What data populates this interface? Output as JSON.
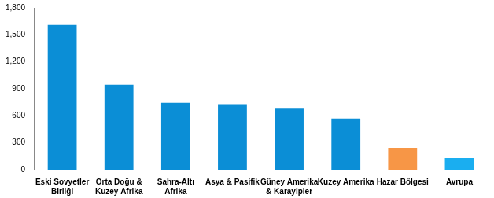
{
  "chart_data": {
    "type": "bar",
    "categories": [
      "Eski Sovyetler Birliği",
      "Orta Doğu & Kuzey Afrika",
      "Sahra-Altı Afrika",
      "Asya & Pasifik",
      "Güney Amerika & Karayipler",
      "Kuzey Amerika",
      "Hazar Bölgesi",
      "Avrupa"
    ],
    "values": [
      1610,
      945,
      745,
      730,
      680,
      570,
      240,
      130
    ],
    "colors": [
      "#0b8ed6",
      "#0b8ed6",
      "#0b8ed6",
      "#0b8ed6",
      "#0b8ed6",
      "#0b8ed6",
      "#f79646",
      "#1aaef0"
    ],
    "ylim": [
      0,
      1800
    ],
    "yticks": [
      0,
      300,
      600,
      900,
      {
        "value": 1200,
        "label": "1,200"
      },
      {
        "value": 1500,
        "label": "1,500"
      },
      {
        "value": 1800,
        "label": "1,800"
      }
    ],
    "grid": false
  }
}
